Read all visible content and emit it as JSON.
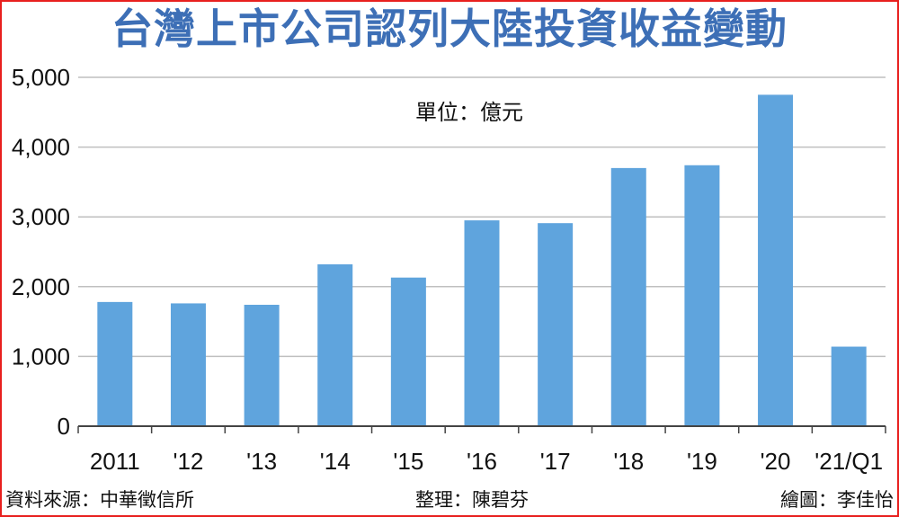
{
  "title": "台灣上市公司認列大陸投資收益變動",
  "unit_label": "單位：億元",
  "footer": {
    "source": "資料來源：中華徵信所",
    "editor": "整理：陳碧芬",
    "illustrator": "繪圖：李佳怡"
  },
  "colors": {
    "bar": "#5fa4dd",
    "title": "#3d6fb6",
    "border": "#e8201e",
    "grid": "#bfbfbf"
  },
  "chart_data": {
    "type": "bar",
    "categories": [
      "2011",
      "'12",
      "'13",
      "'14",
      "'15",
      "'16",
      "'17",
      "'18",
      "'19",
      "'20",
      "'21/Q1"
    ],
    "values": [
      1780,
      1760,
      1740,
      2320,
      2130,
      2950,
      2910,
      3700,
      3740,
      4750,
      1140
    ],
    "ylim": [
      0,
      5000
    ],
    "yticks": [
      0,
      1000,
      2000,
      3000,
      4000,
      5000
    ],
    "ytick_labels": [
      "0",
      "1,000",
      "2,000",
      "3,000",
      "4,000",
      "5,000"
    ],
    "grid": true
  }
}
